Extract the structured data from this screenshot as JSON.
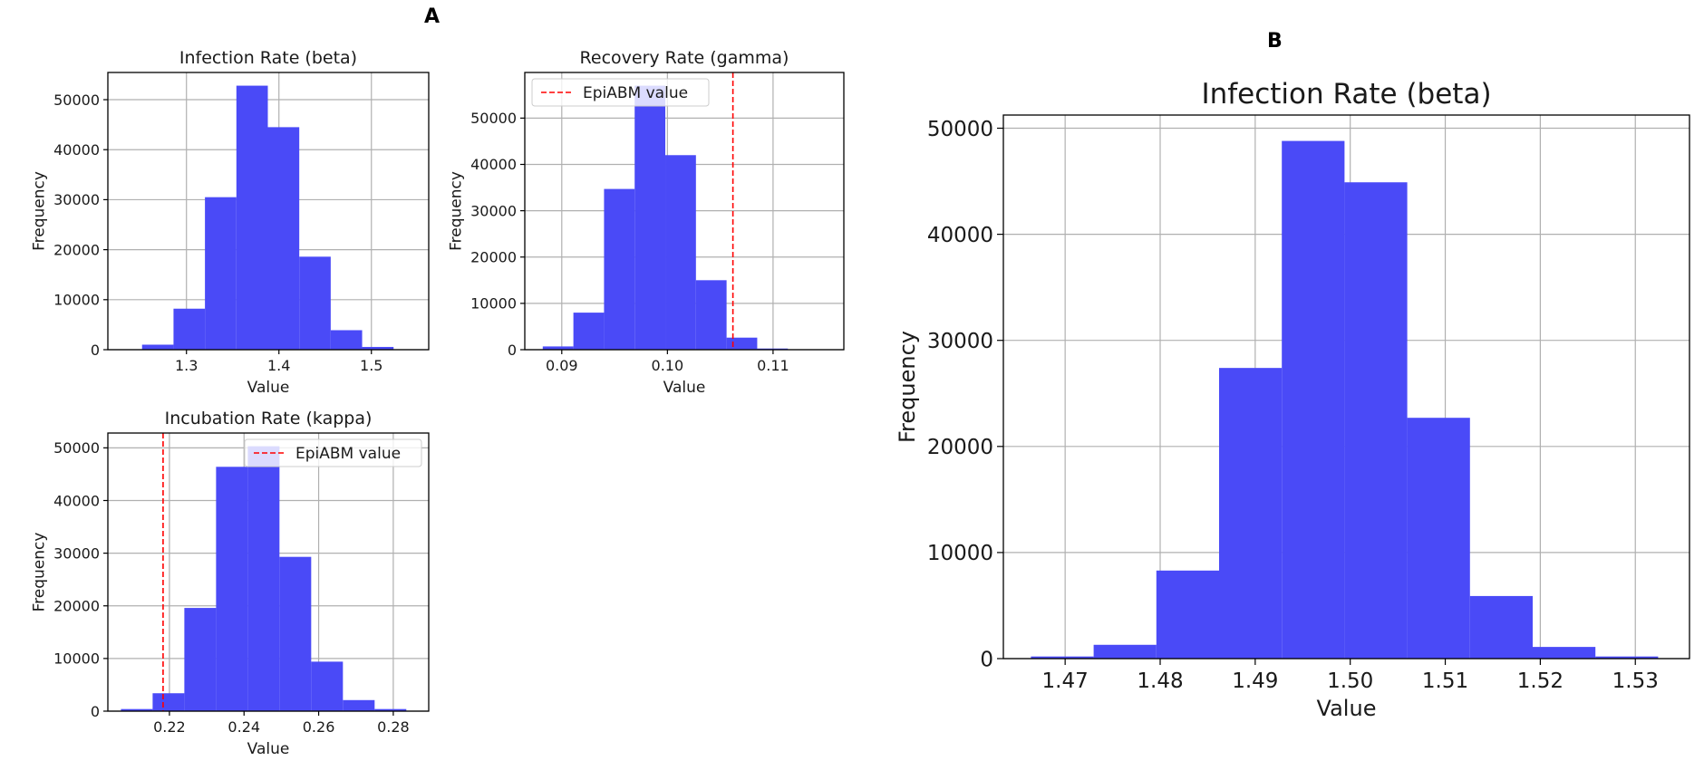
{
  "panels": {
    "a_label": "A",
    "b_label": "B"
  },
  "colors": {
    "bar": "#4a4af7",
    "line": "#ff0000",
    "grid": "#b0b0b0"
  },
  "chart_data": [
    {
      "type": "bar",
      "title": "Infection Rate (beta)",
      "xlabel": "Value",
      "ylabel": "Frequency",
      "bin_edges": [
        1.218,
        1.252,
        1.286,
        1.32,
        1.354,
        1.388,
        1.422,
        1.456,
        1.49,
        1.524,
        1.558
      ],
      "values": [
        50,
        1000,
        8200,
        30500,
        52800,
        44500,
        18600,
        3900,
        550,
        50
      ],
      "xlim": [
        1.215,
        1.562
      ],
      "ylim": [
        0,
        55440
      ],
      "xticks": [
        1.3,
        1.4,
        1.5
      ],
      "xtick_labels": [
        "1.3",
        "1.4",
        "1.5"
      ],
      "yticks": [
        0,
        10000,
        20000,
        30000,
        40000,
        50000
      ],
      "grid": true
    },
    {
      "type": "bar",
      "title": "Recovery Rate (gamma)",
      "xlabel": "Value",
      "ylabel": "Frequency",
      "bin_edges": [
        0.0882,
        0.0911,
        0.094,
        0.0969,
        0.0998,
        0.1027,
        0.1056,
        0.1085,
        0.1114,
        0.1143
      ],
      "values": [
        700,
        8000,
        34700,
        57000,
        42000,
        15000,
        2600,
        250,
        20
      ],
      "xlim": [
        0.0865,
        0.1167
      ],
      "ylim": [
        0,
        59850
      ],
      "xticks": [
        0.09,
        0.1,
        0.11
      ],
      "xtick_labels": [
        "0.09",
        "0.10",
        "0.11"
      ],
      "yticks": [
        0,
        10000,
        20000,
        30000,
        40000,
        50000
      ],
      "grid": true,
      "reference_line": {
        "x": 0.1062,
        "label": "EpiABM value"
      },
      "legend": "top-left"
    },
    {
      "type": "bar",
      "title": "Incubation Rate (kappa)",
      "xlabel": "Value",
      "ylabel": "Frequency",
      "bin_edges": [
        0.207,
        0.2155,
        0.224,
        0.2325,
        0.241,
        0.2495,
        0.258,
        0.2665,
        0.275,
        0.2835
      ],
      "values": [
        400,
        3400,
        19600,
        46400,
        50300,
        29300,
        9400,
        2100,
        400
      ],
      "xlim": [
        0.2035,
        0.2895
      ],
      "ylim": [
        0,
        52815
      ],
      "xticks": [
        0.22,
        0.24,
        0.26,
        0.28
      ],
      "xtick_labels": [
        "0.22",
        "0.24",
        "0.26",
        "0.28"
      ],
      "yticks": [
        0,
        10000,
        20000,
        30000,
        40000,
        50000
      ],
      "grid": true,
      "reference_line": {
        "x": 0.2183,
        "label": "EpiABM value"
      },
      "legend": "top-right"
    },
    {
      "type": "bar",
      "title": "Infection Rate (beta)",
      "xlabel": "Value",
      "ylabel": "Frequency",
      "bin_edges": [
        1.4664,
        1.473,
        1.4796,
        1.4862,
        1.4928,
        1.4994,
        1.506,
        1.5126,
        1.5192,
        1.5258,
        1.5324
      ],
      "values": [
        200,
        1300,
        8300,
        27400,
        48800,
        44900,
        22700,
        5900,
        1100,
        200
      ],
      "xlim": [
        1.4635,
        1.5357
      ],
      "ylim": [
        0,
        51240
      ],
      "xticks": [
        1.47,
        1.48,
        1.49,
        1.5,
        1.51,
        1.52,
        1.53
      ],
      "xtick_labels": [
        "1.47",
        "1.48",
        "1.49",
        "1.50",
        "1.51",
        "1.52",
        "1.53"
      ],
      "yticks": [
        0,
        10000,
        20000,
        30000,
        40000,
        50000
      ],
      "grid": true
    }
  ]
}
